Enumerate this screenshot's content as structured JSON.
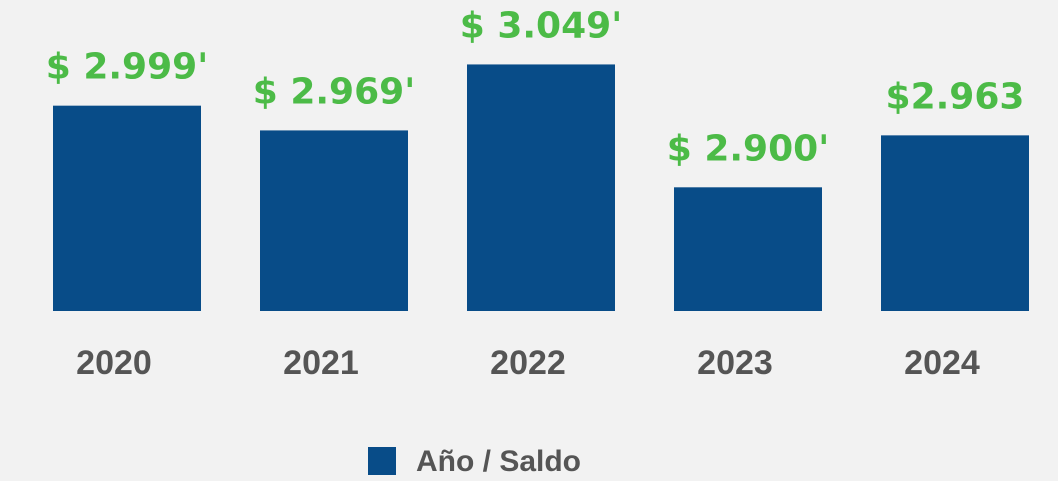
{
  "chart_data": {
    "type": "bar",
    "categories": [
      "2020",
      "2021",
      "2022",
      "2023",
      "2024"
    ],
    "series": [
      {
        "name": "Año / Saldo",
        "color": "#084c88",
        "values": [
          2999,
          2969,
          3049,
          2900,
          2963
        ],
        "value_labels": [
          "$ 2.999'",
          "$ 2.969'",
          "$ 3.049'",
          "$ 2.900'",
          "$2.963"
        ]
      }
    ],
    "ylim": [
      2750,
      3075
    ],
    "label_color": "#4cbb47"
  }
}
